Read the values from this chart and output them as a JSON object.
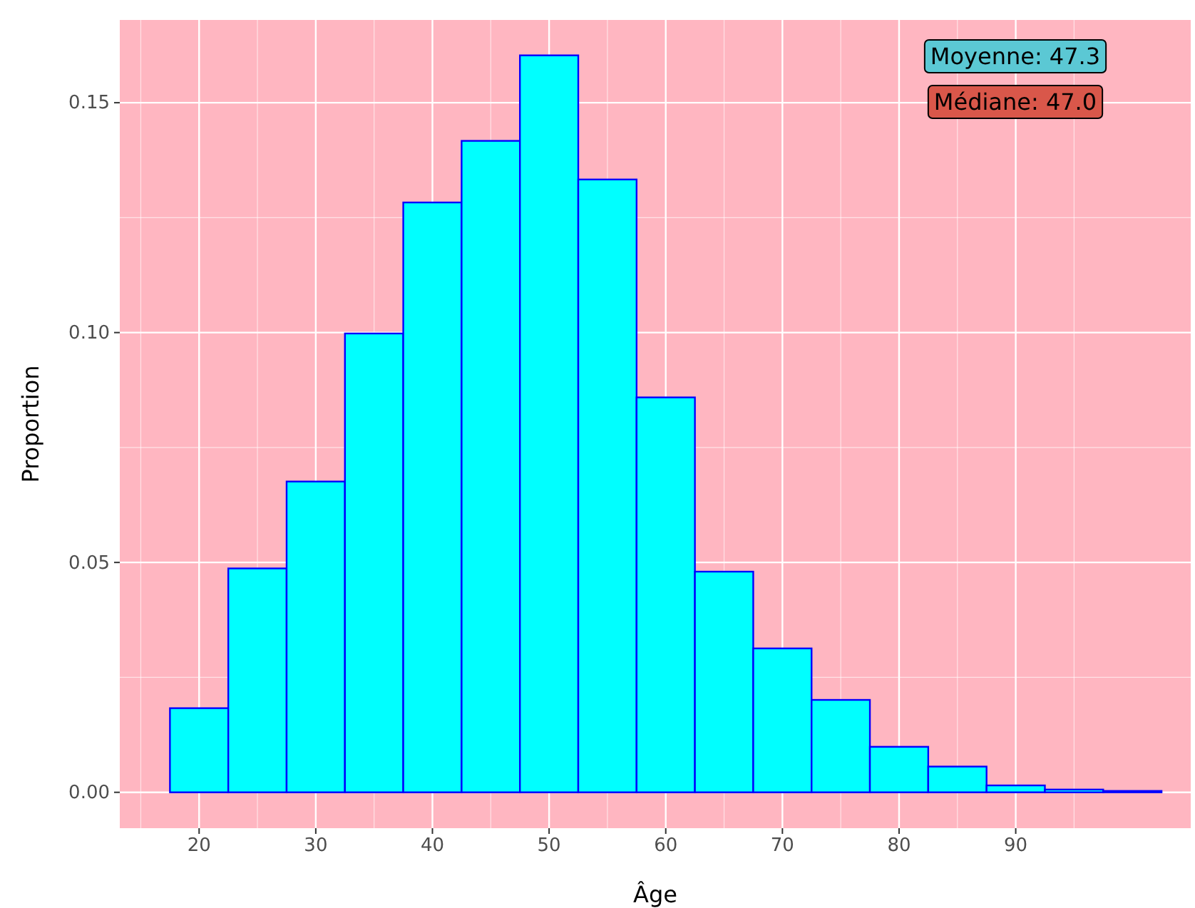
{
  "chart_data": {
    "type": "histogram",
    "xlabel": "Âge",
    "ylabel": "Proportion",
    "bins": [
      17.5,
      22.5,
      27.5,
      32.5,
      37.5,
      42.5,
      47.5,
      52.5,
      57.5,
      62.5,
      67.5,
      72.5,
      77.5,
      82.5,
      87.5,
      92.5,
      97.5,
      102.5
    ],
    "values": [
      0.0183,
      0.0487,
      0.0676,
      0.0998,
      0.1283,
      0.1417,
      0.1603,
      0.1333,
      0.0859,
      0.048,
      0.0313,
      0.0201,
      0.0099,
      0.0056,
      0.0015,
      0.0006,
      0.0003
    ],
    "color": "#00ffff",
    "xlim": [
      13.2,
      105
    ],
    "ylim": [
      -0.0078,
      0.168
    ],
    "xticks": [
      20,
      30,
      40,
      50,
      60,
      70,
      80,
      90
    ],
    "yticks": [
      {
        "value": 0,
        "label": "0.00"
      },
      {
        "value": 0.05,
        "label": "0.05"
      },
      {
        "value": 0.1,
        "label": "0.10"
      },
      {
        "value": 0.15,
        "label": "0.15"
      }
    ],
    "grid": true,
    "annotations": [
      "Moyenne: 47.3",
      "Médiane: 47.0"
    ]
  }
}
